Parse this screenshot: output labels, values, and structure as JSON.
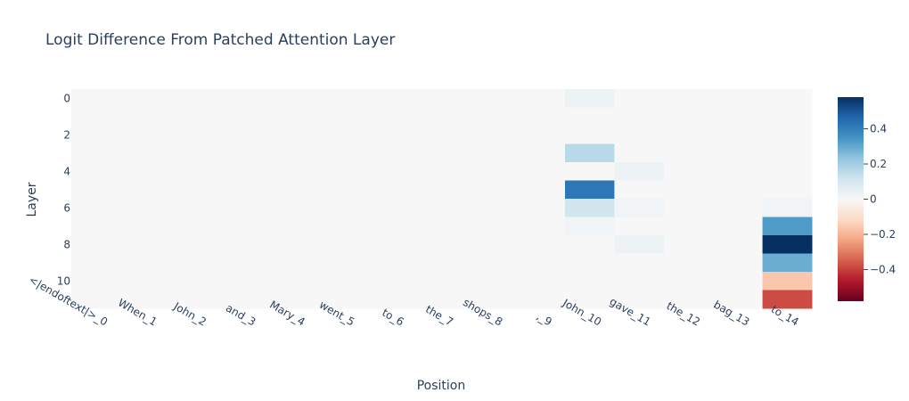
{
  "chart_data": {
    "type": "heatmap",
    "title": "Logit Difference From Patched Attention Layer",
    "xlabel": "Position",
    "ylabel": "Layer",
    "x_categories": [
      "<|endoftext|>_0",
      "When_1",
      "John_2",
      "and_3",
      "Mary_4",
      "went_5",
      "to_6",
      "the_7",
      "shops_8",
      ",_9",
      "John_10",
      "gave_11",
      "the_12",
      "bag_13",
      "to_14"
    ],
    "y_categories": [
      0,
      1,
      2,
      3,
      4,
      5,
      6,
      7,
      8,
      9,
      10,
      11
    ],
    "y_tick_labels": [
      "0",
      "2",
      "4",
      "6",
      "8",
      "10"
    ],
    "y_tick_values": [
      0,
      2,
      4,
      6,
      8,
      10
    ],
    "colorscale": "RdBu",
    "zmin": -0.58,
    "zmax": 0.58,
    "colorbar_tick_labels": [
      "0.4",
      "0.2",
      "0",
      "−0.2",
      "−0.4"
    ],
    "colorbar_tick_values": [
      0.4,
      0.2,
      0,
      -0.2,
      -0.4
    ],
    "z": [
      [
        0,
        0,
        0,
        0,
        0,
        0,
        0,
        0,
        0,
        0,
        0.03,
        0,
        0,
        0,
        0
      ],
      [
        0,
        0,
        0,
        0,
        0,
        0,
        0,
        0,
        0,
        0,
        0,
        0,
        0,
        0,
        0
      ],
      [
        0,
        0,
        0,
        0,
        0,
        0,
        0,
        0,
        0,
        0,
        0,
        0,
        0,
        0,
        0
      ],
      [
        0,
        0,
        0,
        0,
        0,
        0,
        0,
        0,
        0,
        0,
        0.16,
        0,
        0,
        0,
        0
      ],
      [
        0,
        0,
        0,
        0,
        0,
        0,
        0,
        0,
        0,
        0,
        0,
        0.03,
        0,
        0,
        0
      ],
      [
        0,
        0,
        0,
        0,
        0,
        0,
        0,
        0,
        0,
        0,
        0.42,
        0,
        0,
        0,
        0
      ],
      [
        0,
        0,
        0,
        0,
        0,
        0,
        0,
        0,
        0,
        0,
        0.11,
        0.02,
        0,
        0,
        0.02
      ],
      [
        0,
        0,
        0,
        0,
        0,
        0,
        0,
        0,
        0,
        0,
        0.02,
        0,
        0,
        0,
        0.33
      ],
      [
        0,
        0,
        0,
        0,
        0,
        0,
        0,
        0,
        0,
        0,
        0,
        0.03,
        0,
        0,
        0.58
      ],
      [
        0,
        0,
        0,
        0,
        0,
        0,
        0,
        0,
        0,
        0,
        0,
        0,
        0,
        0,
        0.29
      ],
      [
        0,
        0,
        0,
        0,
        0,
        0,
        0,
        0,
        0,
        0,
        0,
        0,
        0,
        0,
        -0.16
      ],
      [
        0,
        0,
        0,
        0,
        0,
        0,
        0,
        0,
        0,
        0,
        0,
        0,
        0,
        0,
        -0.38
      ]
    ]
  }
}
